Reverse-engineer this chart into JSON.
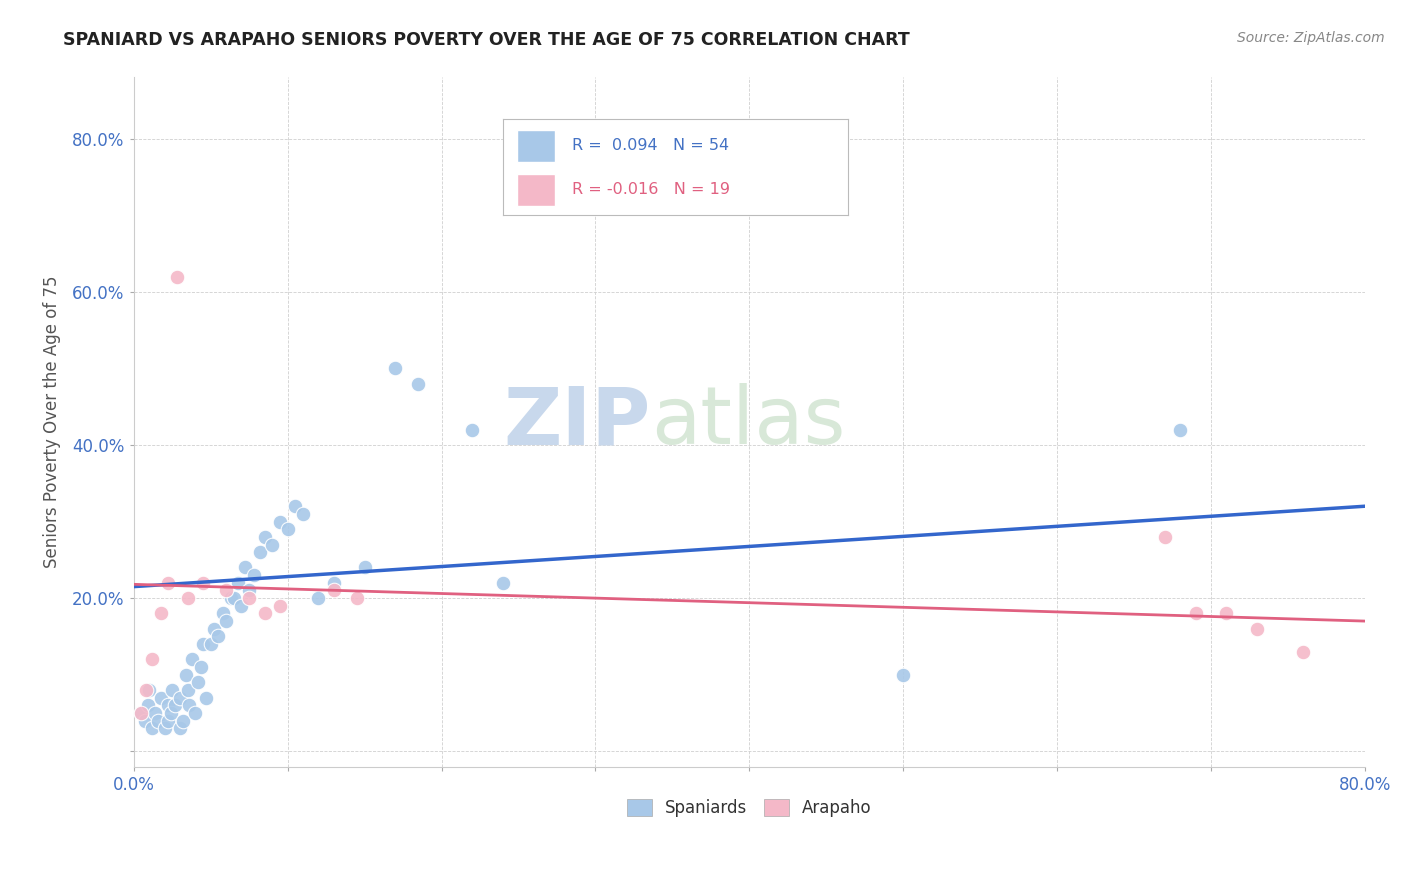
{
  "title": "SPANIARD VS ARAPAHO SENIORS POVERTY OVER THE AGE OF 75 CORRELATION CHART",
  "source": "Source: ZipAtlas.com",
  "ylabel": "Seniors Poverty Over the Age of 75",
  "xlim": [
    0.0,
    0.8
  ],
  "ylim": [
    -0.02,
    0.88
  ],
  "xticks": [
    0.0,
    0.1,
    0.2,
    0.3,
    0.4,
    0.5,
    0.6,
    0.7,
    0.8
  ],
  "yticks": [
    0.0,
    0.2,
    0.4,
    0.6,
    0.8
  ],
  "legend_blue_r": "0.094",
  "legend_blue_n": "54",
  "legend_pink_r": "-0.016",
  "legend_pink_n": "19",
  "blue_color": "#a8c8e8",
  "pink_color": "#f4b8c8",
  "trend_blue_color": "#3366cc",
  "trend_pink_color": "#e06080",
  "watermark_zip": "ZIP",
  "watermark_atlas": "atlas",
  "spaniards_x": [
    0.005,
    0.007,
    0.009,
    0.01,
    0.012,
    0.014,
    0.016,
    0.018,
    0.02,
    0.022,
    0.022,
    0.024,
    0.025,
    0.027,
    0.03,
    0.03,
    0.032,
    0.034,
    0.035,
    0.036,
    0.038,
    0.04,
    0.042,
    0.044,
    0.045,
    0.047,
    0.05,
    0.052,
    0.055,
    0.058,
    0.06,
    0.063,
    0.065,
    0.068,
    0.07,
    0.072,
    0.075,
    0.078,
    0.082,
    0.085,
    0.09,
    0.095,
    0.1,
    0.105,
    0.11,
    0.12,
    0.13,
    0.15,
    0.17,
    0.185,
    0.22,
    0.24,
    0.5,
    0.68
  ],
  "spaniards_y": [
    0.05,
    0.04,
    0.06,
    0.08,
    0.03,
    0.05,
    0.04,
    0.07,
    0.03,
    0.04,
    0.06,
    0.05,
    0.08,
    0.06,
    0.03,
    0.07,
    0.04,
    0.1,
    0.08,
    0.06,
    0.12,
    0.05,
    0.09,
    0.11,
    0.14,
    0.07,
    0.14,
    0.16,
    0.15,
    0.18,
    0.17,
    0.2,
    0.2,
    0.22,
    0.19,
    0.24,
    0.21,
    0.23,
    0.26,
    0.28,
    0.27,
    0.3,
    0.29,
    0.32,
    0.31,
    0.2,
    0.22,
    0.24,
    0.5,
    0.48,
    0.42,
    0.22,
    0.1,
    0.42
  ],
  "arapaho_x": [
    0.005,
    0.008,
    0.012,
    0.018,
    0.022,
    0.028,
    0.035,
    0.045,
    0.06,
    0.075,
    0.085,
    0.095,
    0.13,
    0.145,
    0.67,
    0.69,
    0.71,
    0.73,
    0.76
  ],
  "arapaho_y": [
    0.05,
    0.08,
    0.12,
    0.18,
    0.22,
    0.62,
    0.2,
    0.22,
    0.21,
    0.2,
    0.18,
    0.19,
    0.21,
    0.2,
    0.28,
    0.18,
    0.18,
    0.16,
    0.13
  ],
  "trend_blue_x0": 0.0,
  "trend_blue_y0": 0.215,
  "trend_blue_x1": 0.8,
  "trend_blue_y1": 0.32,
  "trend_pink_x0": 0.0,
  "trend_pink_y0": 0.218,
  "trend_pink_x1": 0.8,
  "trend_pink_y1": 0.17
}
